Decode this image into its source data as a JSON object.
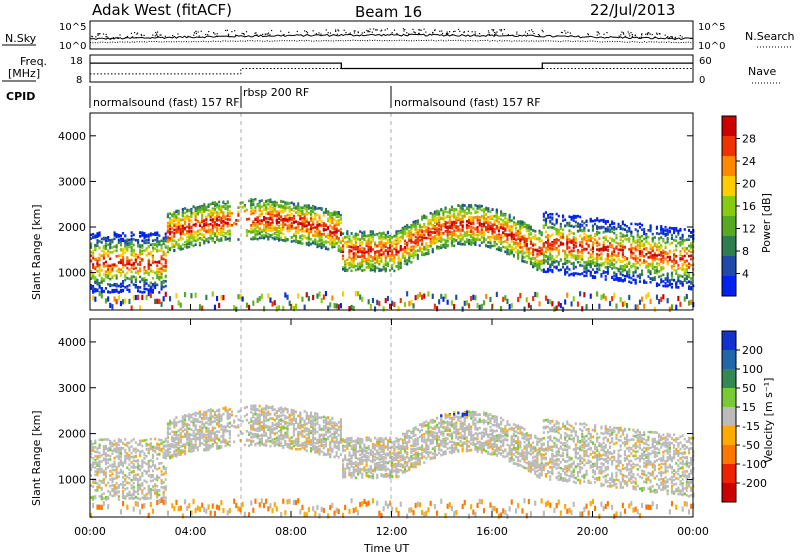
{
  "header": {
    "title": "Adak West (fitACF)",
    "beam": "Beam 16",
    "date": "22/Jul/2013"
  },
  "noise_panel": {
    "left_label": "N.Sky",
    "right_label": "N.Search",
    "tick_top": "10^5",
    "tick_bottom": "10^0"
  },
  "freq_panel": {
    "left_label_line1": "Freq.",
    "left_label_line2": "[MHz]",
    "right_label": "Nave",
    "left_ticks": [
      "18",
      "8"
    ],
    "right_ticks": [
      "60",
      "0"
    ]
  },
  "cpid_panel": {
    "label": "CPID",
    "segments": [
      {
        "label": "normalsound (fast) 157 RF",
        "start_hour": 0,
        "end_hour": 6
      },
      {
        "label": "rbsp 200 RF",
        "start_hour": 6,
        "end_hour": 12
      },
      {
        "label": "normalsound (fast) 157 RF",
        "start_hour": 12,
        "end_hour": 24
      }
    ]
  },
  "time_axis": {
    "label": "Time UT",
    "ticks": [
      "00:00",
      "04:00",
      "08:00",
      "12:00",
      "16:00",
      "20:00",
      "00:00"
    ],
    "range_hours": [
      0,
      24
    ]
  },
  "chart_data": [
    {
      "type": "line",
      "panel": "noise",
      "series": [
        {
          "name": "N.Sky",
          "style": "solid"
        },
        {
          "name": "N.Search",
          "style": "dotted"
        }
      ]
    },
    {
      "type": "line",
      "panel": "frequency",
      "series": [
        {
          "name": "Freq.",
          "style": "solid",
          "units": "MHz",
          "x_hours": [
            0,
            10,
            10,
            12,
            12,
            18,
            18,
            24
          ],
          "values": [
            15,
            15,
            13,
            13,
            13,
            13,
            15,
            15
          ]
        },
        {
          "name": "Nave",
          "style": "dotted",
          "x_hours": [
            0,
            6,
            6,
            24
          ],
          "values": [
            18,
            18,
            30,
            30
          ]
        }
      ],
      "ylim_freq": [
        8,
        18
      ],
      "ylim_nave": [
        0,
        60
      ]
    },
    {
      "type": "heatmap",
      "panel": "power",
      "ylabel": "Slant Range [km]",
      "xlabel": "",
      "ylim": [
        180,
        4500
      ],
      "yticks": [
        1000,
        2000,
        3000,
        4000
      ],
      "colorbar": {
        "label": "Power [dB]",
        "ticks": [
          "4",
          "8",
          "12",
          "16",
          "20",
          "24",
          "28"
        ],
        "range": [
          0,
          30
        ],
        "colors": [
          "#0022ee",
          "#1f4aa8",
          "#2e7d4f",
          "#55aa22",
          "#88cc11",
          "#ffcc00",
          "#ff8800",
          "#ee3300",
          "#cc0000"
        ]
      }
    },
    {
      "type": "heatmap",
      "panel": "velocity",
      "ylabel": "Slant Range [km]",
      "xlabel": "Time UT",
      "ylim": [
        180,
        4500
      ],
      "yticks": [
        1000,
        2000,
        3000,
        4000
      ],
      "colorbar": {
        "label": "Velocity [m s⁻¹]",
        "ticks": [
          "200",
          "100",
          "50",
          "15",
          "-15",
          "-50",
          "-100",
          "-200"
        ],
        "range": [
          -250,
          250
        ],
        "colors": [
          "#1133cc",
          "#2266aa",
          "#338855",
          "#77cc33",
          "#bbbbbb",
          "#ffaa00",
          "#ff7700",
          "#ee2200",
          "#cc0000"
        ]
      }
    }
  ]
}
